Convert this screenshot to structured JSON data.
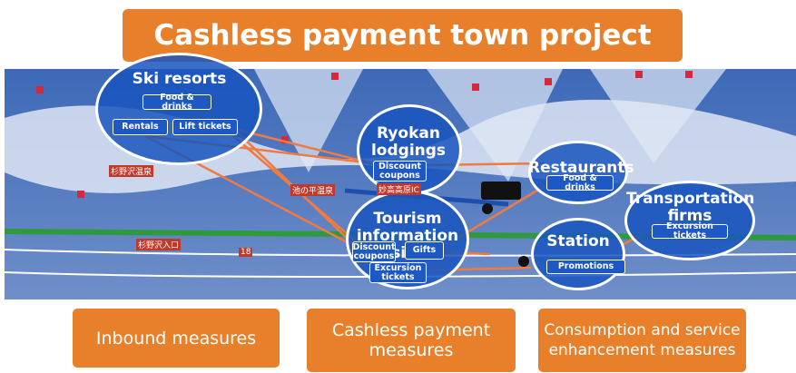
{
  "title": "Cashless payment town project",
  "nodes": [
    {
      "label": "Ski resorts",
      "items": [
        "Food & drinks",
        "Rentals",
        "Lift tickets"
      ]
    },
    {
      "label": "Ryokan lodgings",
      "items": [
        "Discount coupons"
      ]
    },
    {
      "label": "Restaurants",
      "items": [
        "Food & drinks"
      ]
    },
    {
      "label": "Transportation firms",
      "items": [
        "Excursion tickets"
      ]
    },
    {
      "label": "Tourism information site",
      "items": [
        "Discount coupons",
        "Gifts",
        "Excursion tickets"
      ]
    },
    {
      "label": "Station",
      "items": [
        "Promotions"
      ]
    }
  ],
  "map_labels": [
    "杉野沢温泉",
    "池の平温泉",
    "妙高高原IC",
    "杉野沢入口",
    "18"
  ],
  "measures": [
    "Inbound measures",
    "Cashless payment measures",
    "Consumption and service enhancement measures"
  ]
}
